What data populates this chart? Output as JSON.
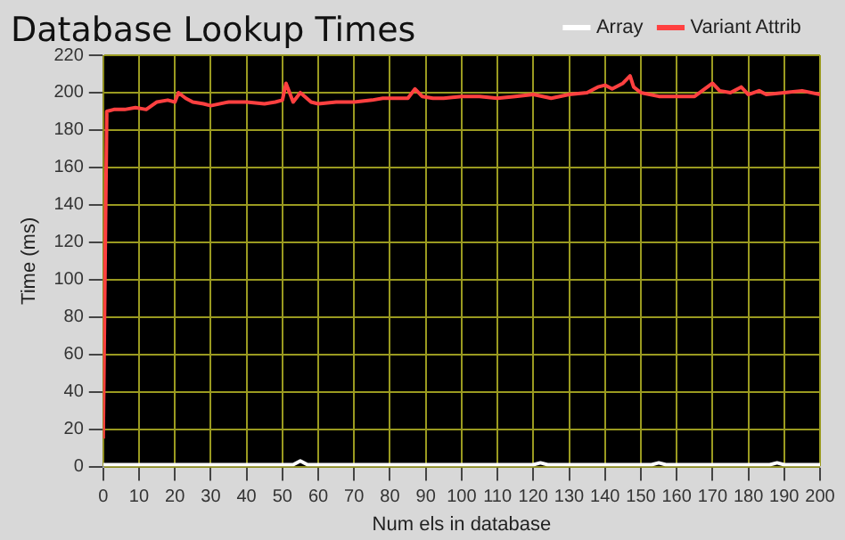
{
  "chart_data": {
    "type": "line",
    "title": "Database Lookup Times",
    "xlabel": "Num els in database",
    "ylabel": "Time (ms)",
    "xlim": [
      0,
      200
    ],
    "xticks": [
      0,
      10,
      20,
      30,
      40,
      50,
      60,
      70,
      80,
      90,
      100,
      110,
      120,
      130,
      140,
      150,
      160,
      170,
      180,
      190,
      200
    ],
    "ylim": [
      0,
      220
    ],
    "yticks": [
      0,
      20,
      40,
      60,
      80,
      100,
      120,
      140,
      160,
      180,
      200,
      220
    ],
    "grid": true,
    "legend": "top right",
    "marker": "none",
    "line_style": "solid",
    "series": [
      {
        "name": "Array",
        "color": "#ffffff",
        "x": [
          0,
          5,
          10,
          15,
          20,
          25,
          30,
          35,
          40,
          45,
          50,
          53,
          55,
          57,
          60,
          70,
          80,
          90,
          100,
          110,
          120,
          122,
          124,
          130,
          140,
          150,
          153,
          155,
          157,
          160,
          170,
          180,
          186,
          188,
          190,
          200
        ],
        "values": [
          1,
          1,
          1,
          1,
          1,
          1,
          1,
          1,
          1,
          1,
          1,
          1,
          3,
          1,
          1,
          1,
          1,
          1,
          1,
          1,
          1,
          2,
          1,
          1,
          1,
          1,
          1,
          2,
          1,
          1,
          1,
          1,
          1,
          2,
          1,
          1
        ]
      },
      {
        "name": "Variant Attrib",
        "color": "#ff4040",
        "x": [
          0,
          1,
          3,
          6,
          9,
          12,
          15,
          18,
          20,
          21,
          23,
          25,
          28,
          30,
          35,
          40,
          45,
          48,
          50,
          51,
          53,
          55,
          58,
          60,
          65,
          70,
          75,
          78,
          80,
          85,
          87,
          89,
          92,
          95,
          100,
          105,
          110,
          115,
          120,
          125,
          130,
          135,
          138,
          140,
          142,
          145,
          147,
          148,
          150,
          155,
          160,
          165,
          170,
          172,
          175,
          178,
          180,
          183,
          185,
          190,
          195,
          200
        ],
        "values": [
          15,
          190,
          191,
          191,
          192,
          191,
          195,
          196,
          195,
          200,
          197,
          195,
          194,
          193,
          195,
          195,
          194,
          195,
          196,
          205,
          195,
          200,
          195,
          194,
          195,
          195,
          196,
          197,
          197,
          197,
          202,
          198,
          197,
          197,
          198,
          198,
          197,
          198,
          199,
          197,
          199,
          200,
          203,
          204,
          202,
          205,
          209,
          203,
          200,
          198,
          198,
          198,
          205,
          201,
          200,
          203,
          199,
          201,
          199,
          200,
          201,
          199
        ]
      }
    ]
  }
}
